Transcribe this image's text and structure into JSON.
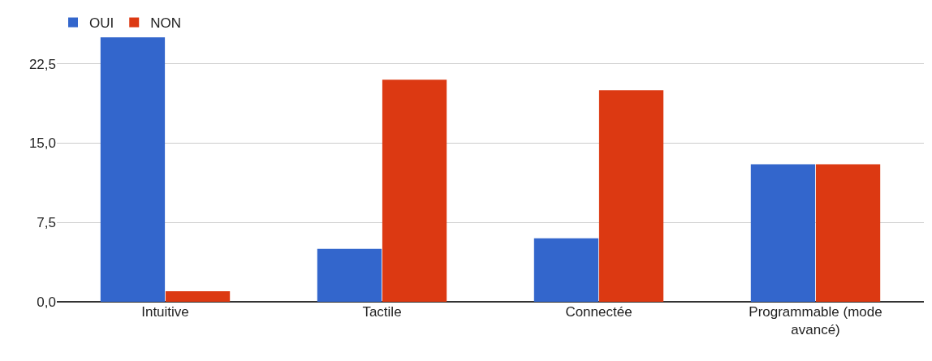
{
  "chart_data": {
    "type": "bar",
    "categories": [
      "Intuitive",
      "Tactile",
      "Connectée",
      "Programmable (mode avancé)"
    ],
    "series": [
      {
        "name": "OUI",
        "color": "#3366cc",
        "values": [
          25,
          5,
          6,
          13
        ]
      },
      {
        "name": "NON",
        "color": "#dc3912",
        "values": [
          1,
          21,
          20,
          13
        ]
      }
    ],
    "ylim": [
      0,
      25
    ],
    "yticks": [
      {
        "value": 0,
        "label": "0,0"
      },
      {
        "value": 7.5,
        "label": "7,5"
      },
      {
        "value": 15,
        "label": "15,0"
      },
      {
        "value": 22.5,
        "label": "22,5"
      }
    ],
    "grid": "y",
    "legend": "top left"
  }
}
